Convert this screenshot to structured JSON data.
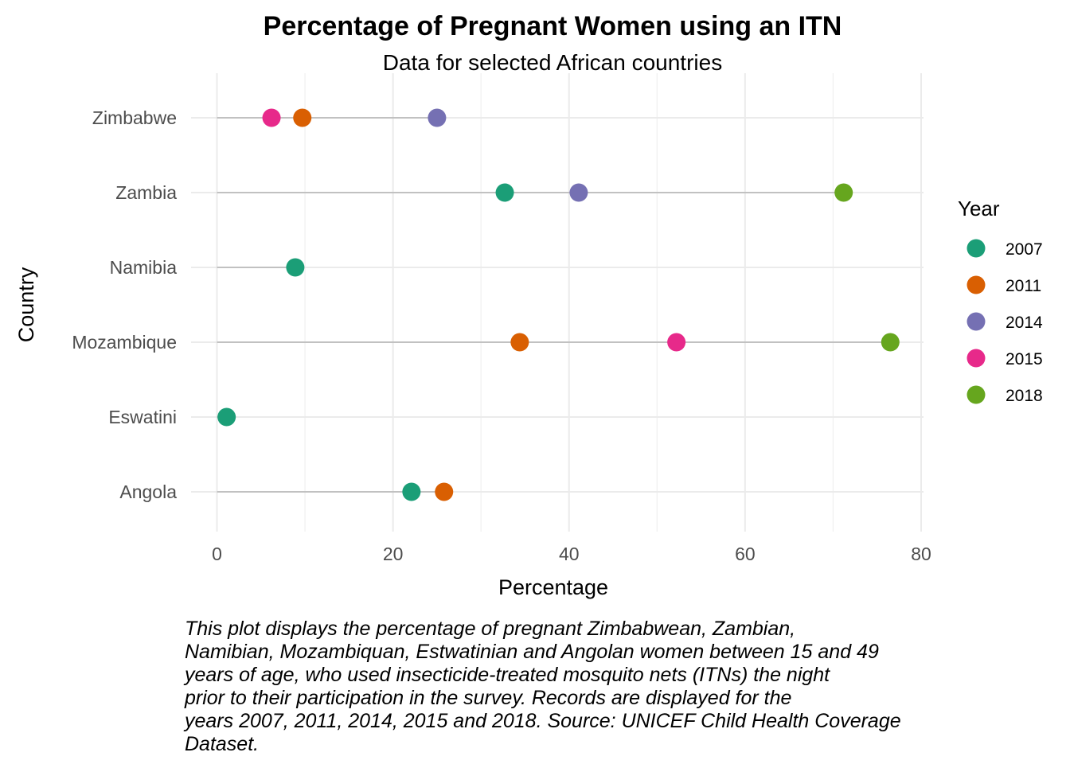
{
  "chart_data": {
    "type": "scatter",
    "title": "Percentage of Pregnant Women using an ITN",
    "subtitle": "Data for selected African countries",
    "xlabel": "Percentage",
    "ylabel": "Country",
    "xlim": [
      0,
      80
    ],
    "x_ticks": [
      0,
      20,
      40,
      60,
      80
    ],
    "categories": [
      "Zimbabwe",
      "Zambia",
      "Namibia",
      "Mozambique",
      "Eswatini",
      "Angola"
    ],
    "grid": true,
    "legend": {
      "title": "Year",
      "placement": "right",
      "entries": [
        {
          "label": "2007",
          "color": "#1b9e77"
        },
        {
          "label": "2011",
          "color": "#d95f02"
        },
        {
          "label": "2014",
          "color": "#7570b3"
        },
        {
          "label": "2015",
          "color": "#e7298a"
        },
        {
          "label": "2018",
          "color": "#66a61e"
        }
      ]
    },
    "series": [
      {
        "name": "2007",
        "values": [
          null,
          32.7,
          8.9,
          null,
          1.1,
          22.1
        ]
      },
      {
        "name": "2011",
        "values": [
          9.7,
          null,
          null,
          34.4,
          null,
          25.8
        ]
      },
      {
        "name": "2014",
        "values": [
          25.0,
          41.1,
          null,
          null,
          null,
          null
        ]
      },
      {
        "name": "2015",
        "values": [
          6.2,
          null,
          null,
          52.2,
          null,
          null
        ]
      },
      {
        "name": "2018",
        "values": [
          null,
          71.2,
          null,
          76.5,
          null,
          null
        ]
      }
    ],
    "segment_color": "#b3b3b3"
  },
  "caption": {
    "lines": [
      "This plot displays the percentage of pregnant Zimbabwean, Zambian,",
      "Namibian, Mozambiquan, Estwatinian and Angolan women between 15 and 49",
      "years of age, who used insecticide-treated mosquito nets (ITNs) the night",
      "prior to their participation in the survey. Records are displayed for the",
      "years 2007, 2011, 2014, 2015 and 2018. Source: UNICEF Child Health Coverage",
      "Dataset."
    ]
  }
}
